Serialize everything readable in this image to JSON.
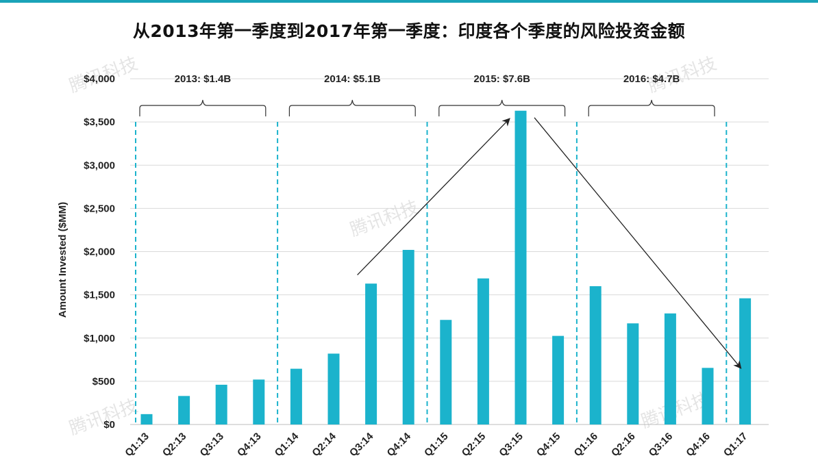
{
  "title": "从2013年第一季度到2017年第一季度：印度各个季度的风险投资金额",
  "colors": {
    "bar": "#1bb3cc",
    "accent": "#1aa3b8",
    "grid": "#d9d9d9",
    "divider": "#1bb3cc"
  },
  "watermark": "腾讯科技",
  "chart_data": {
    "type": "bar",
    "ylabel": "Amount Invested ($MM)",
    "ylim": [
      0,
      4000
    ],
    "yticks": [
      0,
      500,
      1000,
      1500,
      2000,
      2500,
      3000,
      3500,
      4000
    ],
    "ytick_labels": [
      "$0",
      "$500",
      "$1,000",
      "$1,500",
      "$2,000",
      "$2,500",
      "$3,000",
      "$3,500",
      "$4,000"
    ],
    "grid": true,
    "categories": [
      "Q1:13",
      "Q2:13",
      "Q3:13",
      "Q4:13",
      "Q1:14",
      "Q2:14",
      "Q3:14",
      "Q4:14",
      "Q1:15",
      "Q2:15",
      "Q3:15",
      "Q4:15",
      "Q1:16",
      "Q2:16",
      "Q3:16",
      "Q4:16",
      "Q1:17"
    ],
    "values": [
      120,
      330,
      460,
      520,
      645,
      820,
      1630,
      2020,
      1210,
      1690,
      3630,
      1025,
      1600,
      1170,
      1285,
      655,
      1460
    ],
    "annotations": [
      {
        "label": "2013: $1.4B",
        "start": 0,
        "end": 3
      },
      {
        "label": "2014: $5.1B",
        "start": 4,
        "end": 7
      },
      {
        "label": "2015: $7.6B",
        "start": 8,
        "end": 11
      },
      {
        "label": "2016: $4.7B",
        "start": 12,
        "end": 15
      }
    ],
    "trend_arrows": [
      {
        "from": [
          6,
          1730
        ],
        "to": [
          10,
          3540
        ]
      },
      {
        "from": [
          10,
          3550
        ],
        "to": [
          16,
          650
        ]
      }
    ]
  }
}
